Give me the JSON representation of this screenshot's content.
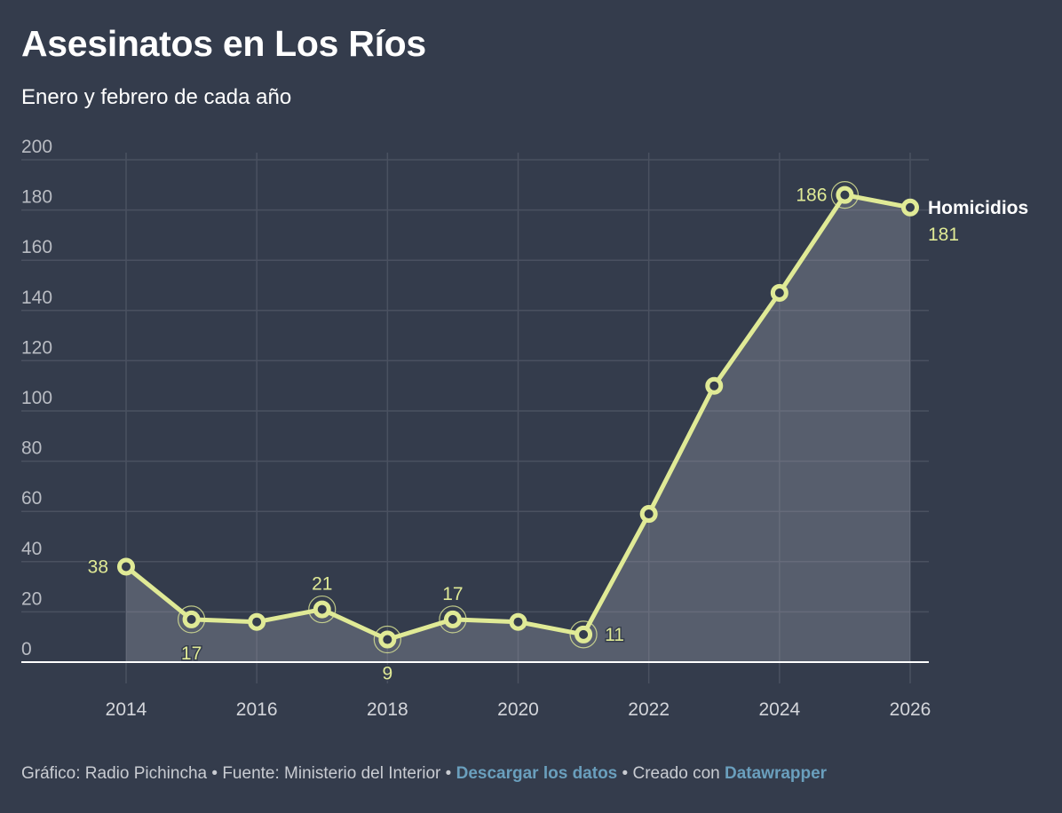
{
  "header": {
    "title": "Asesinatos en Los Ríos",
    "subtitle": "Enero y febrero de cada año"
  },
  "footer": {
    "credit": "Gráfico: Radio Pichincha",
    "separator": " • ",
    "source": "Fuente: Ministerio del Interior",
    "download_link": "Descargar los datos",
    "created_with": "Creado con",
    "datawrapper_link": "Datawrapper"
  },
  "colors": {
    "background": "#343c4c",
    "line": "#e0ea96",
    "area": "#525866",
    "grid": "#4a5160",
    "link": "#6a9fbd"
  },
  "chart_data": {
    "type": "area",
    "title": "Asesinatos en Los Ríos",
    "subtitle": "Enero y febrero de cada año",
    "xlabel": "",
    "ylabel": "",
    "x": [
      2014,
      2015,
      2016,
      2017,
      2018,
      2019,
      2020,
      2021,
      2022,
      2023,
      2024,
      2025,
      2026
    ],
    "series": [
      {
        "name": "Homicidios",
        "values": [
          38,
          17,
          16,
          21,
          9,
          17,
          16,
          11,
          59,
          110,
          147,
          186,
          181
        ]
      }
    ],
    "xlim": [
      2012.4,
      2026.3
    ],
    "ylim": [
      0,
      200
    ],
    "x_ticks": [
      "2014",
      "2016",
      "2018",
      "2020",
      "2022",
      "2024",
      "2026"
    ],
    "y_ticks": [
      "0",
      "20",
      "40",
      "60",
      "80",
      "100",
      "120",
      "140",
      "160",
      "180",
      "200"
    ],
    "data_labels": [
      {
        "x": 2014,
        "text": "38",
        "position": "left"
      },
      {
        "x": 2015,
        "text": "17",
        "position": "below"
      },
      {
        "x": 2017,
        "text": "21",
        "position": "above"
      },
      {
        "x": 2018,
        "text": "9",
        "position": "below"
      },
      {
        "x": 2019,
        "text": "17",
        "position": "above"
      },
      {
        "x": 2021,
        "text": "11",
        "position": "right"
      },
      {
        "x": 2025,
        "text": "186",
        "position": "left"
      },
      {
        "x": 2026,
        "text": "181",
        "position": "right-below"
      }
    ],
    "highlighted_points": [
      2015,
      2017,
      2018,
      2019,
      2021,
      2025
    ],
    "series_label": "Homicidios",
    "grid": true,
    "legend": "inline-right"
  }
}
